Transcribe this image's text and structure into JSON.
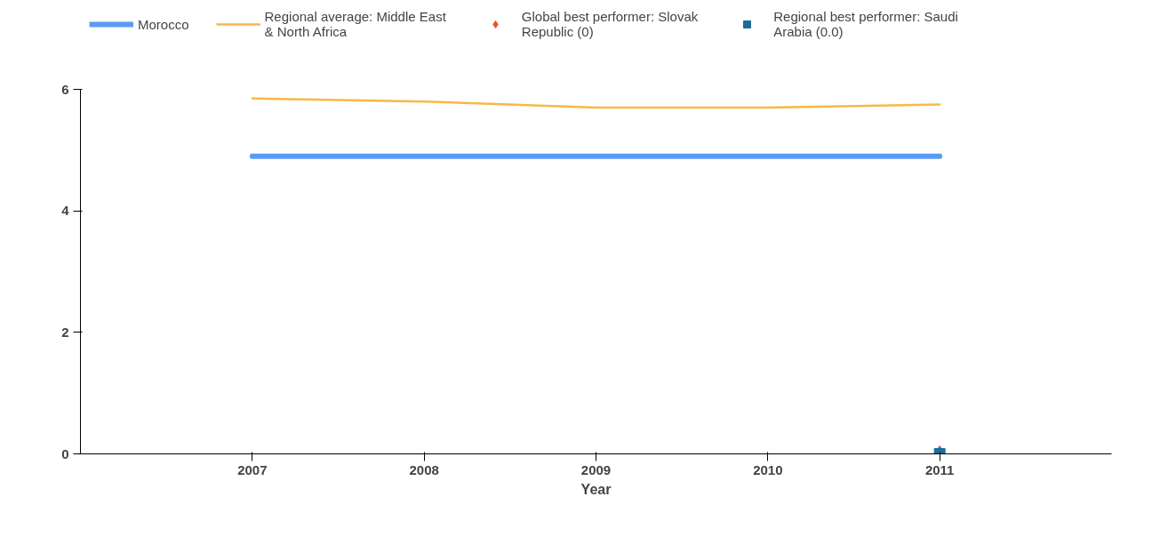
{
  "chart_data": {
    "type": "line",
    "xlabel": "Year",
    "x": [
      2007,
      2008,
      2009,
      2010,
      2011
    ],
    "xlim": [
      2006,
      2012
    ],
    "xticks": [
      2007,
      2008,
      2009,
      2010,
      2011
    ],
    "ylim": [
      0,
      6
    ],
    "yticks": [
      0,
      2,
      4,
      6
    ],
    "grid": false,
    "legend": "top",
    "marker": "none",
    "series": [
      {
        "name": "Morocco",
        "color": "#5b9bf4",
        "values": [
          4.9,
          4.9,
          4.9,
          4.9,
          4.9
        ]
      },
      {
        "name": "Regional average: Middle East & North Africa",
        "color": "#f9b944",
        "values": [
          5.85,
          5.8,
          5.7,
          5.7,
          5.75
        ]
      },
      {
        "name": "Global best performer: Slovak Republic (0)",
        "type": "scatter",
        "marker": "diamond",
        "color": "#e8541c",
        "x": [
          2011
        ],
        "values": [
          0
        ]
      },
      {
        "name": "Regional best performer: Saudi Arabia (0.0)",
        "type": "scatter",
        "marker": "square",
        "color": "#1a6d9a",
        "x": [
          2011
        ],
        "values": [
          0.0
        ]
      }
    ]
  }
}
